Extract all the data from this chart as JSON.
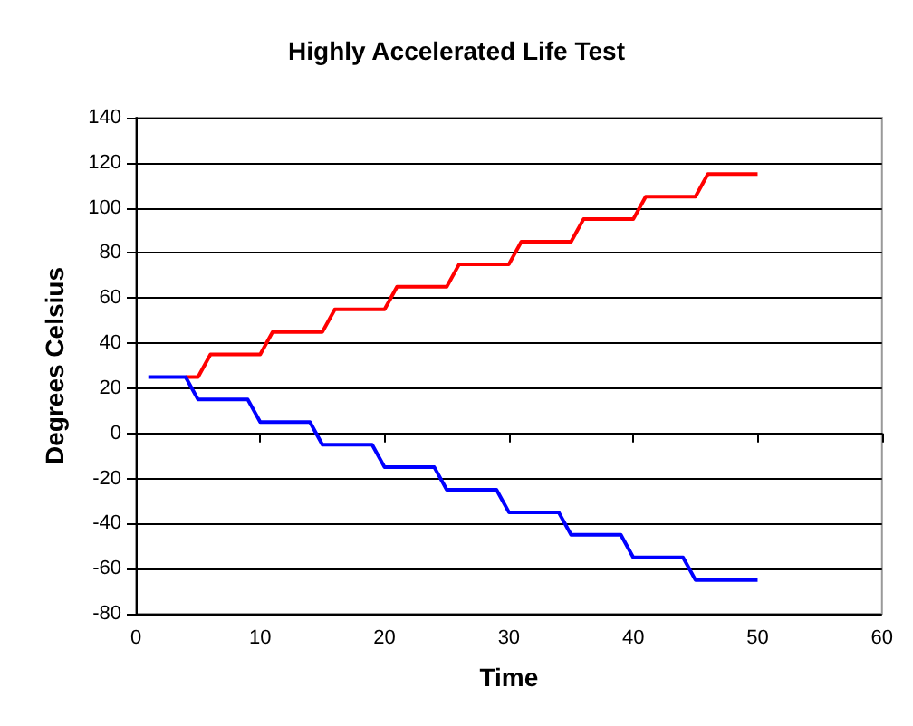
{
  "chart_data": {
    "type": "line",
    "title": "Highly Accelerated Life Test",
    "xlabel": "Time",
    "ylabel": "Degrees Celsius",
    "series": [
      {
        "color": "#ff0000",
        "x": [
          4,
          5,
          6,
          10,
          11,
          15,
          16,
          20,
          21,
          25,
          26,
          30,
          31,
          35,
          36,
          40,
          41,
          45,
          46,
          50
        ],
        "values": [
          25,
          25,
          35,
          35,
          45,
          45,
          55,
          55,
          65,
          65,
          75,
          75,
          85,
          85,
          95,
          95,
          105,
          105,
          115,
          115
        ]
      },
      {
        "color": "#0000ff",
        "x": [
          1,
          4,
          5,
          9,
          10,
          14,
          15,
          19,
          20,
          24,
          25,
          29,
          30,
          34,
          35,
          39,
          40,
          44,
          45,
          50
        ],
        "values": [
          25,
          25,
          15,
          15,
          5,
          5,
          -5,
          -5,
          -15,
          -15,
          -25,
          -25,
          -35,
          -35,
          -45,
          -45,
          -55,
          -55,
          -65,
          -65
        ]
      }
    ],
    "xlim": [
      0,
      60
    ],
    "xticks": [
      0,
      10,
      20,
      30,
      40,
      50,
      60
    ],
    "ylim": [
      -80,
      140
    ],
    "yticks": [
      -80,
      -60,
      -40,
      -20,
      0,
      20,
      40,
      60,
      80,
      100,
      120,
      140
    ],
    "grid": "y",
    "marker": "none",
    "line_style": "solid"
  }
}
